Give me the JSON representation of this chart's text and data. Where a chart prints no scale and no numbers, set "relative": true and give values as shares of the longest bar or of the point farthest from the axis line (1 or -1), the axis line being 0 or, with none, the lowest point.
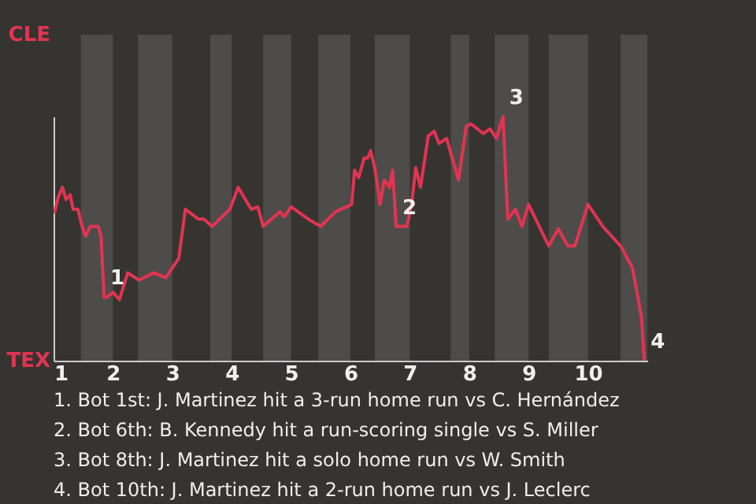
{
  "chart_data": {
    "type": "line",
    "relative": true,
    "x": [
      1.0,
      1.02,
      1.08,
      1.15,
      1.21,
      1.28,
      1.33,
      1.41,
      1.48,
      1.54,
      1.62,
      1.75,
      1.8,
      1.85,
      1.9,
      2.0,
      2.11,
      2.25,
      2.44,
      2.69,
      2.89,
      3.11,
      3.22,
      3.44,
      3.53,
      3.67,
      3.97,
      4.11,
      4.33,
      4.44,
      4.53,
      4.81,
      4.89,
      5.0,
      5.29,
      5.5,
      5.75,
      6.02,
      6.07,
      6.14,
      6.23,
      6.29,
      6.34,
      6.41,
      6.5,
      6.57,
      6.66,
      6.71,
      6.77,
      6.95,
      7.03,
      7.1,
      7.18,
      7.31,
      7.41,
      7.49,
      7.62,
      7.82,
      7.95,
      8.03,
      8.24,
      8.35,
      8.46,
      8.57,
      8.65,
      8.78,
      8.89,
      9.0,
      9.34,
      9.5,
      9.66,
      9.78,
      10.0,
      10.25,
      10.55,
      10.75,
      10.9,
      10.95
    ],
    "series": [
      {
        "color": "#e23450",
        "values": [
          0.61,
          0.61,
          0.67,
          0.71,
          0.66,
          0.68,
          0.62,
          0.62,
          0.55,
          0.51,
          0.55,
          0.55,
          0.51,
          0.26,
          0.26,
          0.28,
          0.25,
          0.36,
          0.33,
          0.36,
          0.34,
          0.42,
          0.62,
          0.58,
          0.58,
          0.55,
          0.62,
          0.71,
          0.62,
          0.63,
          0.55,
          0.61,
          0.59,
          0.63,
          0.58,
          0.55,
          0.61,
          0.64,
          0.78,
          0.75,
          0.83,
          0.83,
          0.86,
          0.79,
          0.64,
          0.74,
          0.71,
          0.78,
          0.55,
          0.55,
          0.64,
          0.79,
          0.71,
          0.92,
          0.94,
          0.89,
          0.91,
          0.74,
          0.96,
          0.97,
          0.93,
          0.95,
          0.91,
          1,
          0.58,
          0.62,
          0.55,
          0.64,
          0.47,
          0.54,
          0.47,
          0.47,
          0.64,
          0.55,
          0.47,
          0.38,
          0.18,
          0
        ]
      }
    ],
    "xlim": [
      1,
      11
    ],
    "xticks": [
      1,
      2,
      3,
      4,
      5,
      6,
      7,
      8,
      9,
      10
    ],
    "legend": false,
    "marker": "none",
    "line_style": "solid",
    "bands": [
      {
        "axis": "x",
        "from": 1.46,
        "to": 2.0,
        "color": "#4e4c4a"
      },
      {
        "axis": "x",
        "from": 2.42,
        "to": 3.0,
        "color": "#4e4c4a"
      },
      {
        "axis": "x",
        "from": 3.64,
        "to": 4.0,
        "color": "#4e4c4a"
      },
      {
        "axis": "x",
        "from": 4.53,
        "to": 5.0,
        "color": "#4e4c4a"
      },
      {
        "axis": "x",
        "from": 5.46,
        "to": 6.0,
        "color": "#4e4c4a"
      },
      {
        "axis": "x",
        "from": 6.41,
        "to": 7.0,
        "color": "#4e4c4a"
      },
      {
        "axis": "x",
        "from": 7.69,
        "to": 8.0,
        "color": "#4e4c4a"
      },
      {
        "axis": "x",
        "from": 8.43,
        "to": 9.0,
        "color": "#4e4c4a"
      },
      {
        "axis": "x",
        "from": 9.34,
        "to": 10.0,
        "color": "#4e4c4a"
      },
      {
        "axis": "x",
        "from": 10.55,
        "to": 11.0,
        "color": "#4e4c4a"
      }
    ],
    "annotations": [
      "CLE",
      "TEX",
      {
        "text": "1",
        "x": 1.85,
        "y": 0.26
      },
      {
        "text": "2",
        "x": 6.77,
        "y": 0.55
      },
      {
        "text": "3",
        "x": 8.57,
        "y": 1
      },
      {
        "text": "4",
        "x": 10.95,
        "y": 0
      },
      "1. Bot 1st: J. Martinez hit a 3-run home run vs C. Hernández",
      "2. Bot 6th: B. Kennedy hit a run-scoring single vs S. Miller",
      "3. Bot 8th: J. Martinez hit a solo home run vs W. Smith",
      "4. Bot 10th: J. Martinez hit a 2-run home run vs J. Leclerc"
    ]
  }
}
